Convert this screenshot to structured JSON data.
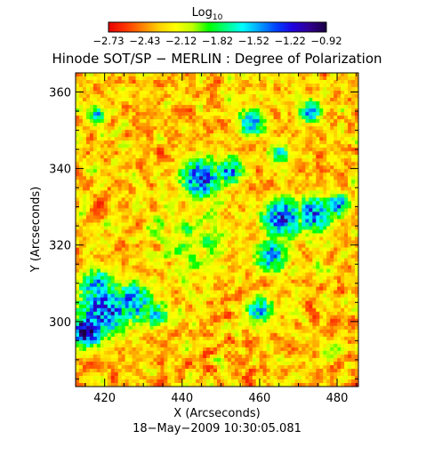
{
  "colorbar": {
    "label": "Log",
    "label_sub": "10",
    "tick_labels": [
      "−2.73",
      "−2.43",
      "−2.12",
      "−1.82",
      "−1.52",
      "−1.22",
      "−0.92"
    ],
    "colors": [
      "#e60000",
      "#ff3300",
      "#ff8000",
      "#ffd000",
      "#ffff00",
      "#c0ff00",
      "#00ff00",
      "#00ff80",
      "#00ffff",
      "#00a0ff",
      "#0040ff",
      "#2000e0",
      "#300090",
      "#1a0040"
    ]
  },
  "chart_data": {
    "type": "heatmap",
    "title": "Hinode SOT/SP − MERLIN : Degree of Polarization",
    "xlabel": "X (Arcseconds)",
    "ylabel": "Y (Arcseconds)",
    "x_ticks": [
      420,
      440,
      460,
      480
    ],
    "y_ticks": [
      300,
      320,
      340,
      360
    ],
    "xlim": [
      412.5,
      485.5
    ],
    "ylim": [
      283,
      365
    ],
    "value_range": [
      -2.73,
      -0.92
    ],
    "value_scale": "log10",
    "timestamp": "18−May−2009 10:30:05.081",
    "high_polarization_regions": [
      {
        "x": 415.5,
        "y": 297.5,
        "radius": 3.5,
        "value": -0.95
      },
      {
        "x": 420.0,
        "y": 303.0,
        "radius": 6.5,
        "value": -1.3
      },
      {
        "x": 427.0,
        "y": 305.0,
        "radius": 5.0,
        "value": -1.45
      },
      {
        "x": 418.0,
        "y": 309.0,
        "radius": 4.5,
        "value": -1.5
      },
      {
        "x": 433.0,
        "y": 302.0,
        "radius": 3.5,
        "value": -1.6
      },
      {
        "x": 445.0,
        "y": 337.5,
        "radius": 5.0,
        "value": -1.35
      },
      {
        "x": 452.0,
        "y": 339.5,
        "radius": 3.5,
        "value": -1.45
      },
      {
        "x": 466.0,
        "y": 327.0,
        "radius": 5.0,
        "value": -1.35
      },
      {
        "x": 474.0,
        "y": 328.0,
        "radius": 4.5,
        "value": -1.4
      },
      {
        "x": 480.0,
        "y": 330.5,
        "radius": 3.0,
        "value": -1.5
      },
      {
        "x": 463.0,
        "y": 317.0,
        "radius": 4.0,
        "value": -1.5
      },
      {
        "x": 460.0,
        "y": 303.0,
        "radius": 3.5,
        "value": -1.55
      },
      {
        "x": 458.0,
        "y": 352.0,
        "radius": 3.5,
        "value": -1.5
      },
      {
        "x": 473.0,
        "y": 355.0,
        "radius": 3.0,
        "value": -1.55
      },
      {
        "x": 465.0,
        "y": 344.0,
        "radius": 2.5,
        "value": -1.6
      },
      {
        "x": 418.0,
        "y": 354.0,
        "radius": 2.5,
        "value": -1.6
      }
    ]
  }
}
